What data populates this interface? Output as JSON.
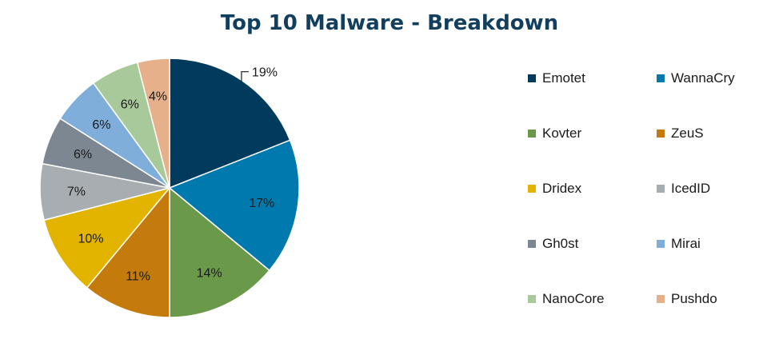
{
  "chart_data": {
    "type": "pie",
    "title": "Top 10 Malware - Breakdown",
    "categories": [
      "Emotet",
      "WannaCry",
      "Kovter",
      "ZeuS",
      "Dridex",
      "IcedID",
      "Gh0st",
      "Mirai",
      "NanoCore",
      "Pushdo"
    ],
    "values": [
      19,
      17,
      14,
      11,
      10,
      7,
      6,
      6,
      6,
      4
    ],
    "labels": [
      "19%",
      "17%",
      "14%",
      "11%",
      "10%",
      "7%",
      "6%",
      "6%",
      "6%",
      "4%"
    ],
    "colors": [
      "#003a5c",
      "#0079ae",
      "#6a9a49",
      "#c57b0b",
      "#e2b400",
      "#a8adb2",
      "#7d8792",
      "#7faedb",
      "#a8c99a",
      "#e5b08a"
    ],
    "legend_position": "right",
    "start_angle_deg": 0,
    "direction": "clockwise"
  }
}
